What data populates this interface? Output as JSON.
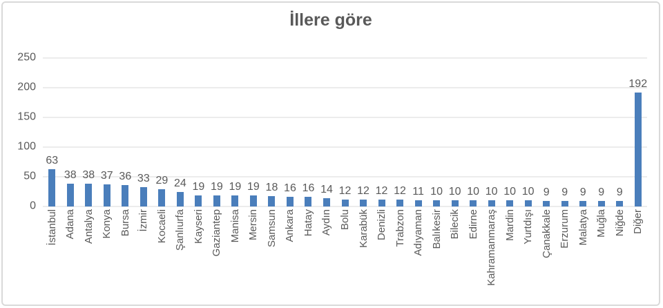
{
  "chart": {
    "colors": {
      "bar": "#4a7ebb",
      "gridline": "#d9d9d9",
      "text": "#595959",
      "border": "#d9d9d9"
    }
  },
  "chart_data": {
    "type": "bar",
    "title": "İllere göre",
    "categories": [
      "İstanbul",
      "Adana",
      "Antalya",
      "Konya",
      "Bursa",
      "İzmir",
      "Kocaeli",
      "Şanlıurfa",
      "Kayseri",
      "Gaziantep",
      "Manisa",
      "Mersin",
      "Samsun",
      "Ankara",
      "Hatay",
      "Aydın",
      "Bolu",
      "Karabük",
      "Denizli",
      "Trabzon",
      "Adıyaman",
      "Balıkesir",
      "Bilecik",
      "Edirne",
      "Kahramanmaraş",
      "Mardin",
      "Yurtdışı",
      "Çanakkale",
      "Erzurum",
      "Malatya",
      "Muğla",
      "Niğde",
      "Diğer"
    ],
    "values": [
      63,
      38,
      38,
      37,
      36,
      33,
      29,
      24,
      19,
      19,
      19,
      19,
      18,
      16,
      16,
      14,
      12,
      12,
      12,
      12,
      11,
      10,
      10,
      10,
      10,
      10,
      10,
      9,
      9,
      9,
      9,
      9,
      192
    ],
    "xlabel": "",
    "ylabel": "",
    "ylim": [
      0,
      250
    ],
    "yticks": [
      0,
      50,
      100,
      150,
      200,
      250
    ],
    "grid": true,
    "legend": false,
    "data_labels": true,
    "bar_color": "#4a7ebb"
  }
}
